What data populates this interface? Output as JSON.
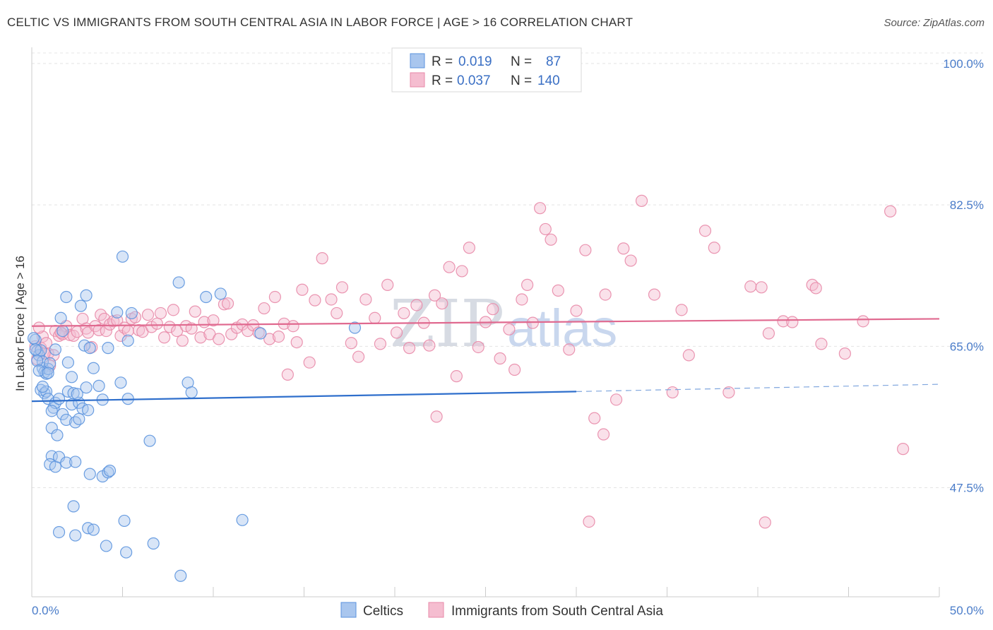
{
  "title": "CELTIC VS IMMIGRANTS FROM SOUTH CENTRAL ASIA IN LABOR FORCE | AGE > 16 CORRELATION CHART",
  "source": "Source: ZipAtlas.com",
  "watermark": {
    "zip": "ZIP",
    "atlas": "atlas"
  },
  "legend": {
    "r_label": "R =",
    "n_label": "N =",
    "rows": [
      {
        "r": "0.019",
        "n": "87"
      },
      {
        "r": "0.037",
        "n": "140"
      }
    ]
  },
  "chart_data": {
    "type": "scatter",
    "title": "CELTIC VS IMMIGRANTS FROM SOUTH CENTRAL ASIA IN LABOR FORCE | AGE > 16 CORRELATION CHART",
    "xlabel": "",
    "ylabel": "In Labor Force | Age > 16",
    "xlim": [
      0,
      50
    ],
    "ylim": [
      34,
      102
    ],
    "x_tick_labels": [
      "0.0%",
      "50.0%"
    ],
    "y_ticks": [
      47.5,
      65.0,
      82.5,
      100.0
    ],
    "y_tick_labels": [
      "47.5%",
      "65.0%",
      "82.5%",
      "100.0%"
    ],
    "grid": true,
    "legend_position": "top-center",
    "series": [
      {
        "name": "Celtics",
        "color": "#5b93de",
        "fill": "#a9c6ee",
        "R": 0.019,
        "N": 87,
        "trend": {
          "x0": 0,
          "y0": 58.2,
          "x1": 30,
          "y1": 59.4,
          "dash_to": 50,
          "dash_y": 60.3
        },
        "points": [
          [
            0.2,
            65.8
          ],
          [
            0.3,
            64.4
          ],
          [
            0.4,
            63.9
          ],
          [
            0.5,
            64.5
          ],
          [
            0.6,
            62.3
          ],
          [
            0.7,
            61.8
          ],
          [
            0.8,
            61.6
          ],
          [
            0.9,
            62.2
          ],
          [
            0.6,
            63.1
          ],
          [
            1.0,
            62.9
          ],
          [
            0.5,
            59.6
          ],
          [
            0.7,
            59.2
          ],
          [
            0.8,
            59.4
          ],
          [
            0.9,
            58.5
          ],
          [
            1.2,
            57.4
          ],
          [
            1.3,
            58.0
          ],
          [
            1.5,
            58.5
          ],
          [
            1.7,
            56.6
          ],
          [
            1.9,
            55.9
          ],
          [
            2.2,
            57.8
          ],
          [
            2.4,
            55.6
          ],
          [
            2.6,
            58.0
          ],
          [
            1.1,
            54.9
          ],
          [
            2.0,
            59.4
          ],
          [
            2.3,
            59.2
          ],
          [
            2.5,
            59.1
          ],
          [
            3.0,
            59.9
          ],
          [
            2.8,
            57.3
          ],
          [
            3.1,
            57.1
          ],
          [
            2.2,
            61.2
          ],
          [
            1.3,
            64.6
          ],
          [
            1.7,
            66.9
          ],
          [
            1.6,
            68.5
          ],
          [
            1.9,
            71.1
          ],
          [
            2.7,
            70.0
          ],
          [
            3.0,
            71.3
          ],
          [
            2.9,
            65.1
          ],
          [
            3.2,
            64.8
          ],
          [
            3.4,
            62.3
          ],
          [
            3.7,
            60.1
          ],
          [
            3.9,
            58.4
          ],
          [
            4.2,
            64.8
          ],
          [
            4.7,
            69.2
          ],
          [
            4.9,
            60.5
          ],
          [
            5.3,
            58.5
          ],
          [
            5.3,
            65.7
          ],
          [
            5.5,
            69.1
          ],
          [
            1.1,
            51.4
          ],
          [
            1.0,
            50.4
          ],
          [
            1.3,
            50.1
          ],
          [
            1.5,
            51.3
          ],
          [
            1.9,
            50.6
          ],
          [
            2.4,
            50.7
          ],
          [
            3.2,
            49.2
          ],
          [
            3.9,
            48.9
          ],
          [
            4.2,
            49.4
          ],
          [
            4.3,
            49.6
          ],
          [
            2.3,
            45.2
          ],
          [
            1.5,
            42.0
          ],
          [
            2.4,
            41.6
          ],
          [
            3.1,
            42.5
          ],
          [
            3.4,
            42.3
          ],
          [
            4.1,
            40.3
          ],
          [
            5.1,
            43.4
          ],
          [
            5.2,
            39.5
          ],
          [
            6.7,
            40.6
          ],
          [
            6.5,
            53.3
          ],
          [
            8.2,
            36.6
          ],
          [
            8.1,
            72.9
          ],
          [
            8.6,
            60.5
          ],
          [
            8.8,
            59.3
          ],
          [
            9.6,
            71.1
          ],
          [
            10.4,
            71.5
          ],
          [
            11.6,
            43.5
          ],
          [
            12.6,
            66.6
          ],
          [
            5.0,
            76.1
          ],
          [
            17.8,
            67.3
          ],
          [
            0.1,
            66.0
          ],
          [
            0.2,
            64.6
          ],
          [
            0.3,
            63.2
          ],
          [
            0.4,
            62.0
          ],
          [
            0.6,
            60.0
          ],
          [
            0.9,
            61.7
          ],
          [
            1.1,
            57.0
          ],
          [
            1.4,
            54.0
          ],
          [
            2.0,
            63.0
          ],
          [
            2.6,
            56.0
          ]
        ]
      },
      {
        "name": "Immigrants from South Central Asia",
        "color": "#e889a8",
        "fill": "#f5bdd0",
        "R": 0.037,
        "N": 140,
        "trend": {
          "x0": 0,
          "y0": 67.5,
          "x1": 50,
          "y1": 68.4
        },
        "points": [
          [
            0.3,
            63.4
          ],
          [
            0.5,
            64.8
          ],
          [
            0.6,
            66.2
          ],
          [
            0.8,
            65.4
          ],
          [
            0.9,
            64.1
          ],
          [
            1.0,
            62.6
          ],
          [
            1.2,
            63.9
          ],
          [
            1.3,
            66.9
          ],
          [
            1.5,
            66.3
          ],
          [
            1.7,
            66.5
          ],
          [
            1.9,
            67.5
          ],
          [
            2.1,
            66.4
          ],
          [
            2.3,
            66.3
          ],
          [
            2.5,
            66.8
          ],
          [
            2.8,
            68.4
          ],
          [
            3.0,
            67.2
          ],
          [
            3.1,
            66.7
          ],
          [
            3.3,
            64.9
          ],
          [
            3.5,
            67.5
          ],
          [
            3.7,
            67.0
          ],
          [
            3.8,
            68.9
          ],
          [
            4.0,
            68.4
          ],
          [
            4.1,
            66.9
          ],
          [
            4.3,
            67.7
          ],
          [
            4.5,
            68.1
          ],
          [
            4.7,
            68.2
          ],
          [
            4.9,
            66.3
          ],
          [
            5.1,
            67.3
          ],
          [
            5.3,
            66.9
          ],
          [
            5.5,
            68.4
          ],
          [
            5.7,
            68.6
          ],
          [
            5.9,
            67.0
          ],
          [
            6.1,
            66.8
          ],
          [
            6.4,
            68.9
          ],
          [
            6.6,
            67.4
          ],
          [
            6.9,
            67.8
          ],
          [
            7.1,
            69.1
          ],
          [
            7.3,
            66.1
          ],
          [
            7.6,
            67.4
          ],
          [
            7.8,
            69.5
          ],
          [
            8.0,
            66.9
          ],
          [
            8.3,
            65.7
          ],
          [
            8.5,
            67.5
          ],
          [
            8.8,
            67.2
          ],
          [
            9.0,
            69.3
          ],
          [
            9.3,
            66.1
          ],
          [
            9.5,
            68.0
          ],
          [
            9.8,
            66.5
          ],
          [
            10.0,
            68.2
          ],
          [
            10.3,
            65.9
          ],
          [
            10.6,
            70.2
          ],
          [
            10.8,
            70.3
          ],
          [
            11.0,
            66.5
          ],
          [
            11.3,
            67.3
          ],
          [
            11.6,
            67.7
          ],
          [
            11.9,
            66.9
          ],
          [
            12.2,
            67.6
          ],
          [
            12.5,
            66.7
          ],
          [
            12.8,
            69.7
          ],
          [
            13.1,
            65.9
          ],
          [
            13.4,
            71.1
          ],
          [
            13.6,
            66.2
          ],
          [
            13.9,
            67.8
          ],
          [
            14.1,
            61.5
          ],
          [
            14.4,
            67.5
          ],
          [
            14.6,
            65.5
          ],
          [
            14.9,
            72.0
          ],
          [
            15.3,
            63.0
          ],
          [
            15.6,
            70.7
          ],
          [
            16.0,
            75.9
          ],
          [
            16.5,
            70.8
          ],
          [
            16.8,
            69.1
          ],
          [
            17.1,
            72.3
          ],
          [
            17.6,
            65.4
          ],
          [
            18.0,
            63.7
          ],
          [
            18.4,
            70.8
          ],
          [
            18.9,
            68.5
          ],
          [
            19.2,
            65.3
          ],
          [
            19.6,
            72.6
          ],
          [
            20.1,
            66.7
          ],
          [
            20.5,
            69.1
          ],
          [
            20.8,
            64.8
          ],
          [
            21.2,
            70.1
          ],
          [
            21.6,
            67.9
          ],
          [
            21.9,
            65.1
          ],
          [
            22.2,
            71.3
          ],
          [
            22.6,
            70.3
          ],
          [
            23.0,
            74.8
          ],
          [
            23.4,
            61.3
          ],
          [
            23.7,
            74.3
          ],
          [
            24.1,
            77.2
          ],
          [
            24.6,
            64.9
          ],
          [
            25.0,
            68.0
          ],
          [
            25.4,
            69.6
          ],
          [
            25.8,
            63.5
          ],
          [
            26.3,
            67.1
          ],
          [
            26.6,
            62.1
          ],
          [
            27.0,
            70.8
          ],
          [
            27.3,
            72.6
          ],
          [
            27.6,
            67.9
          ],
          [
            28.0,
            82.1
          ],
          [
            28.3,
            79.5
          ],
          [
            28.6,
            78.2
          ],
          [
            29.0,
            71.9
          ],
          [
            29.6,
            64.6
          ],
          [
            30.0,
            69.4
          ],
          [
            30.5,
            76.9
          ],
          [
            31.0,
            56.1
          ],
          [
            31.6,
            71.4
          ],
          [
            32.2,
            58.4
          ],
          [
            32.6,
            77.1
          ],
          [
            33.0,
            75.6
          ],
          [
            33.6,
            83.0
          ],
          [
            34.3,
            71.4
          ],
          [
            35.3,
            59.3
          ],
          [
            35.8,
            69.5
          ],
          [
            36.2,
            63.9
          ],
          [
            37.1,
            79.3
          ],
          [
            37.6,
            77.2
          ],
          [
            38.4,
            59.3
          ],
          [
            39.6,
            72.4
          ],
          [
            40.2,
            72.3
          ],
          [
            40.6,
            66.6
          ],
          [
            41.4,
            68.1
          ],
          [
            41.9,
            68.0
          ],
          [
            43.0,
            72.6
          ],
          [
            43.2,
            72.2
          ],
          [
            43.5,
            65.3
          ],
          [
            44.8,
            64.1
          ],
          [
            45.8,
            68.1
          ],
          [
            47.3,
            81.7
          ],
          [
            48.0,
            52.3
          ],
          [
            40.4,
            43.2
          ],
          [
            30.7,
            43.3
          ],
          [
            22.3,
            56.3
          ],
          [
            31.5,
            54.1
          ],
          [
            0.2,
            65.0
          ],
          [
            0.4,
            67.3
          ],
          [
            0.7,
            64.1
          ],
          [
            1.6,
            66.7
          ]
        ]
      }
    ]
  },
  "bottom_legend": [
    {
      "label": "Celtics"
    },
    {
      "label": "Immigrants from South Central Asia"
    }
  ]
}
